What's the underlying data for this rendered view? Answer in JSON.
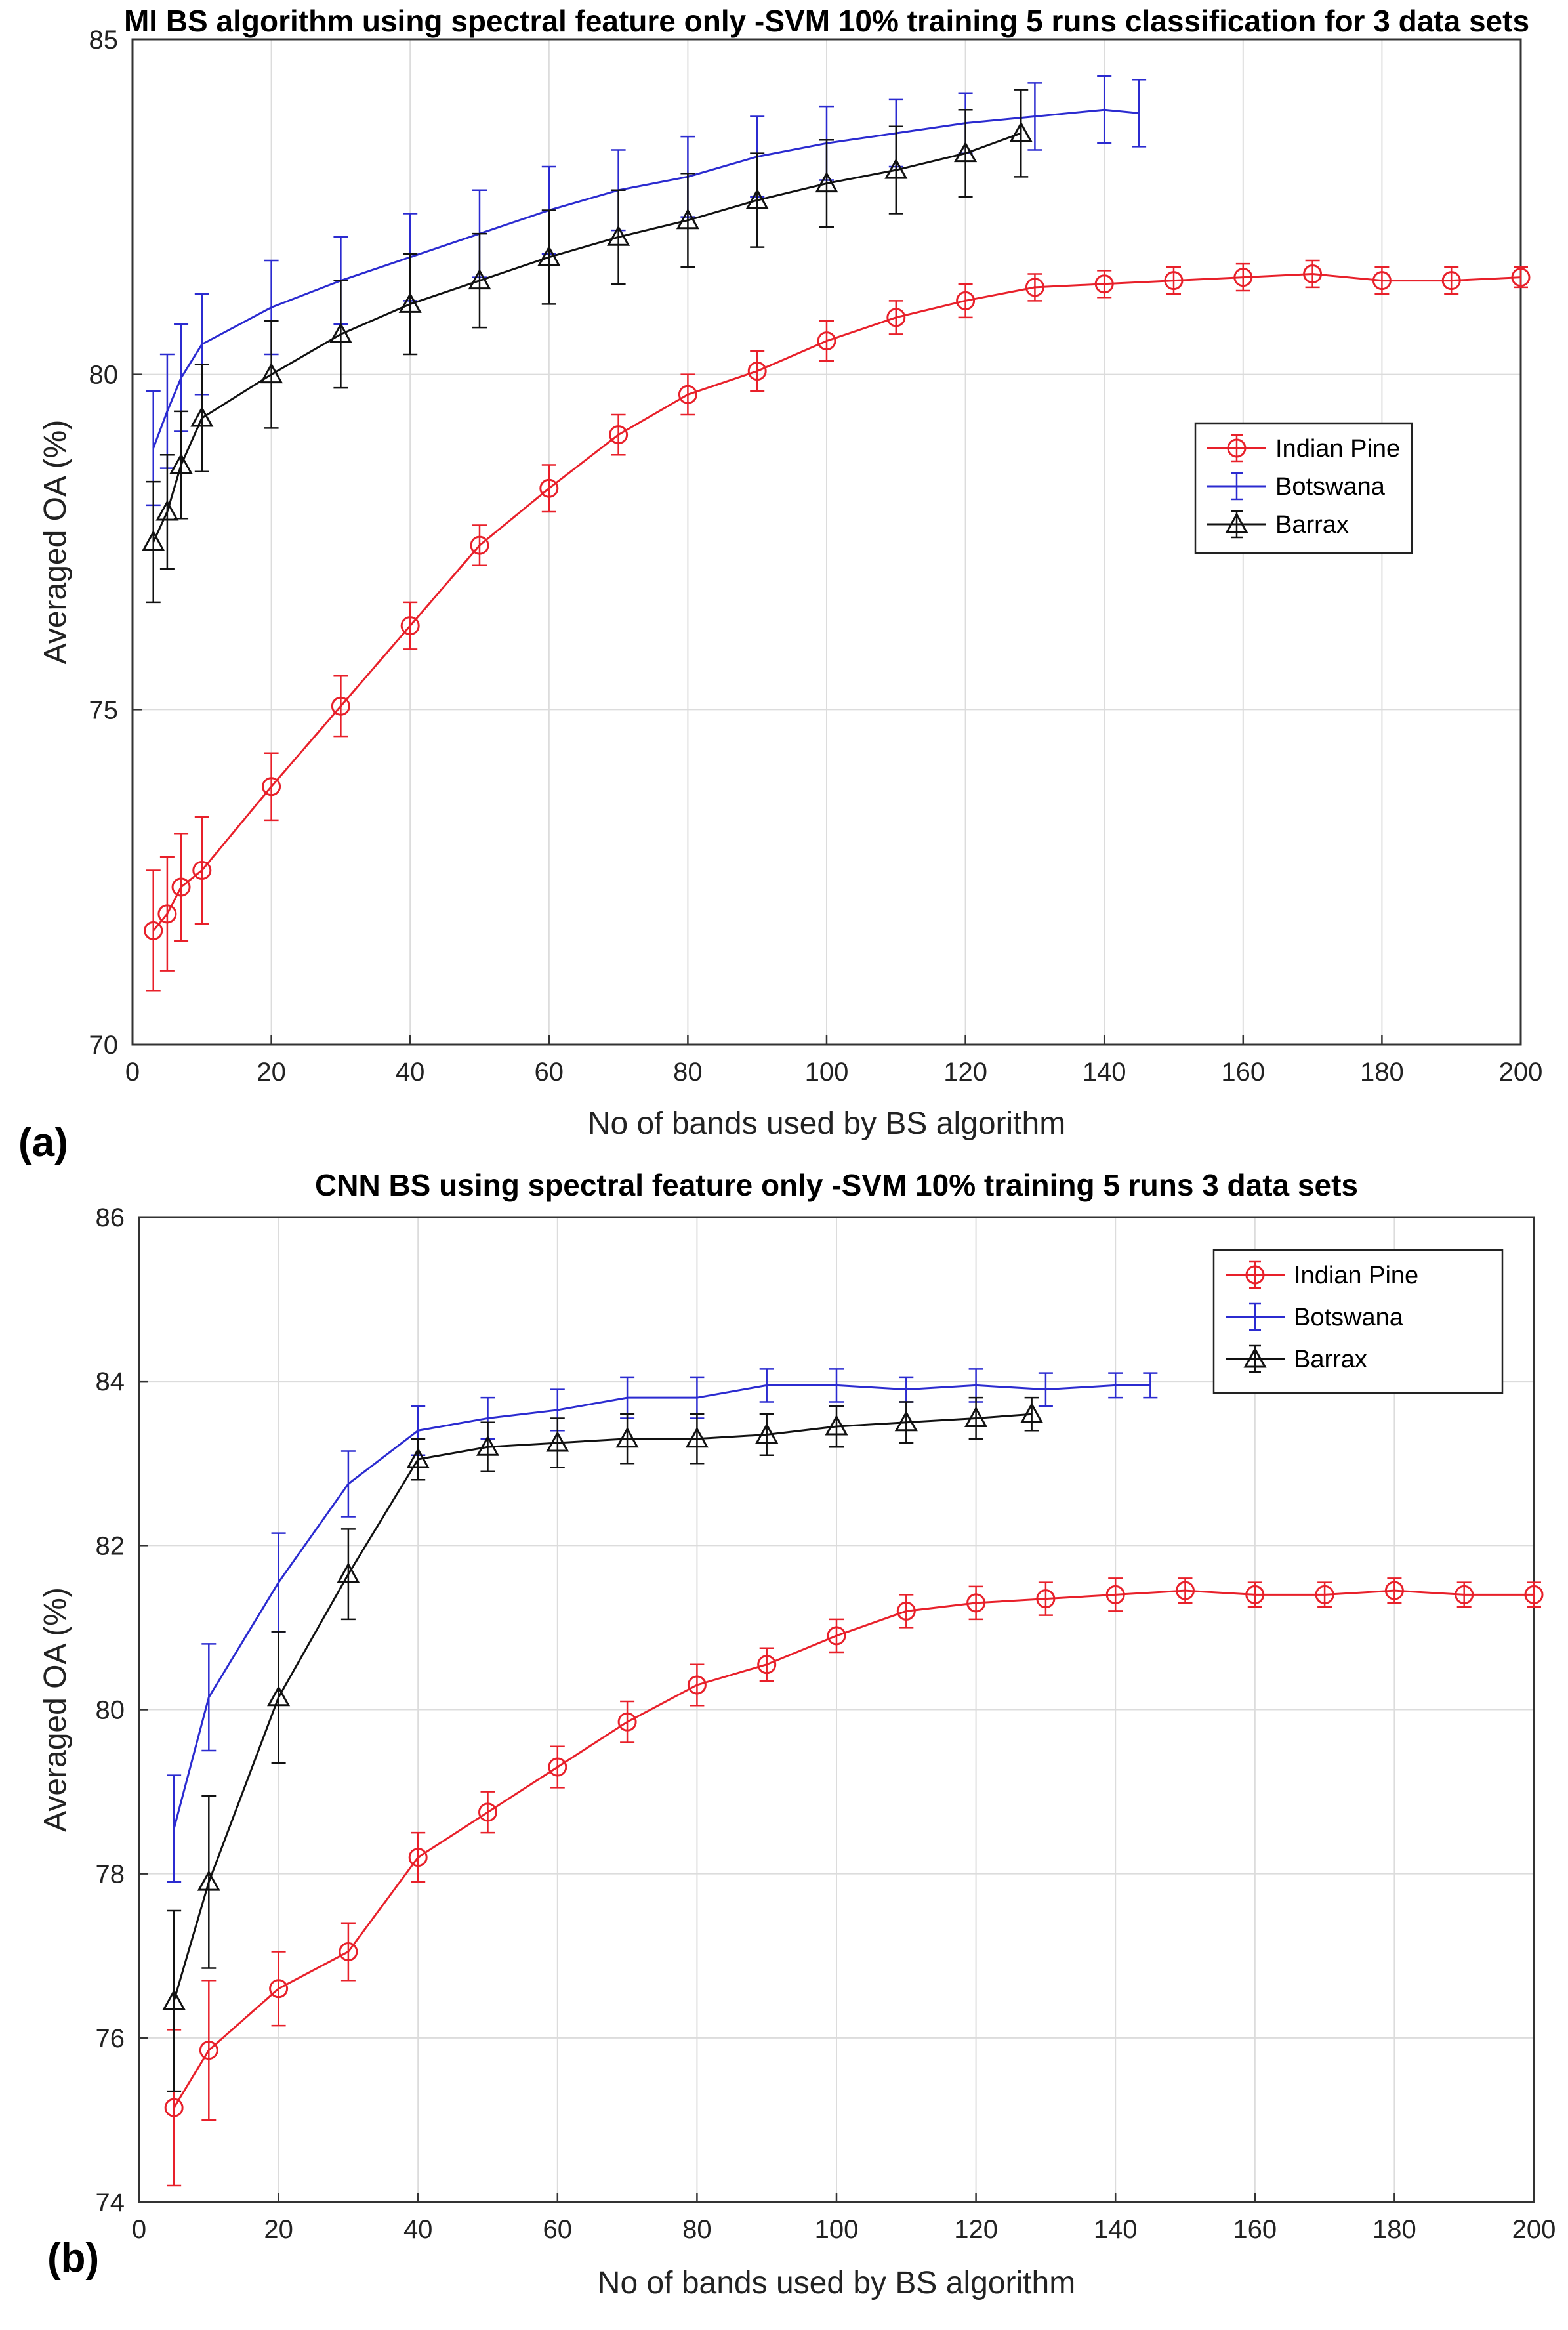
{
  "chart_data": [
    {
      "panel_label": "(a)",
      "type": "line",
      "title": "MI BS algorithm using spectral feature only -SVM 10% training 5 runs classification for 3 data sets",
      "xlabel": "No of bands used by BS algorithm",
      "ylabel": "Averaged OA (%)",
      "xlim": [
        0,
        200
      ],
      "ylim": [
        70,
        85
      ],
      "xticks": [
        0,
        20,
        40,
        60,
        80,
        100,
        120,
        140,
        160,
        180,
        200
      ],
      "yticks": [
        70,
        75,
        80,
        85
      ],
      "grid": true,
      "legend_position": "right",
      "series": [
        {
          "name": "Indian Pine",
          "color": "#e8202a",
          "marker": "circle",
          "x": [
            3,
            5,
            7,
            10,
            20,
            30,
            40,
            50,
            60,
            70,
            80,
            90,
            100,
            110,
            120,
            130,
            140,
            150,
            160,
            170,
            180,
            190,
            200
          ],
          "y": [
            71.7,
            71.95,
            72.35,
            72.6,
            73.85,
            75.05,
            76.25,
            77.45,
            78.3,
            79.1,
            79.7,
            80.05,
            80.5,
            80.85,
            81.1,
            81.3,
            81.35,
            81.4,
            81.45,
            81.5,
            81.4,
            81.4,
            81.45
          ],
          "err": [
            0.9,
            0.85,
            0.8,
            0.8,
            0.5,
            0.45,
            0.35,
            0.3,
            0.35,
            0.3,
            0.3,
            0.3,
            0.3,
            0.25,
            0.25,
            0.2,
            0.2,
            0.2,
            0.2,
            0.2,
            0.2,
            0.2,
            0.15
          ]
        },
        {
          "name": "Botswana",
          "color": "#2b2bd0",
          "marker": "none",
          "x": [
            3,
            5,
            7,
            10,
            20,
            30,
            40,
            50,
            60,
            70,
            80,
            90,
            100,
            110,
            120,
            130,
            140,
            145
          ],
          "y": [
            78.9,
            79.45,
            79.95,
            80.45,
            81.0,
            81.4,
            81.75,
            82.1,
            82.45,
            82.75,
            82.95,
            83.25,
            83.45,
            83.6,
            83.75,
            83.85,
            83.95,
            83.9
          ],
          "err": [
            0.85,
            0.85,
            0.8,
            0.75,
            0.7,
            0.65,
            0.65,
            0.65,
            0.65,
            0.6,
            0.6,
            0.6,
            0.55,
            0.5,
            0.45,
            0.5,
            0.5,
            0.5
          ]
        },
        {
          "name": "Barrax",
          "color": "#111111",
          "marker": "triangle",
          "x": [
            3,
            5,
            7,
            10,
            20,
            30,
            40,
            50,
            60,
            70,
            80,
            90,
            100,
            110,
            120,
            128
          ],
          "y": [
            77.5,
            77.95,
            78.65,
            79.35,
            80.0,
            80.6,
            81.05,
            81.4,
            81.75,
            82.05,
            82.3,
            82.6,
            82.85,
            83.05,
            83.3,
            83.6
          ],
          "err": [
            0.9,
            0.85,
            0.8,
            0.8,
            0.8,
            0.8,
            0.75,
            0.7,
            0.7,
            0.7,
            0.7,
            0.7,
            0.65,
            0.65,
            0.65,
            0.65
          ]
        }
      ]
    },
    {
      "panel_label": "(b)",
      "type": "line",
      "title": "CNN BS using spectral feature only -SVM 10% training 5 runs 3 data sets",
      "xlabel": "No of bands used by BS algorithm",
      "ylabel": "Averaged OA (%)",
      "xlim": [
        0,
        200
      ],
      "ylim": [
        74,
        86
      ],
      "xticks": [
        0,
        20,
        40,
        60,
        80,
        100,
        120,
        140,
        160,
        180,
        200
      ],
      "yticks": [
        74,
        76,
        78,
        80,
        82,
        84,
        86
      ],
      "grid": true,
      "legend_position": "top-right",
      "series": [
        {
          "name": "Indian Pine",
          "color": "#e8202a",
          "marker": "circle",
          "x": [
            5,
            10,
            20,
            30,
            40,
            50,
            60,
            70,
            80,
            90,
            100,
            110,
            120,
            130,
            140,
            150,
            160,
            170,
            180,
            190,
            200
          ],
          "y": [
            75.15,
            75.85,
            76.6,
            77.05,
            78.2,
            78.75,
            79.3,
            79.85,
            80.3,
            80.55,
            80.9,
            81.2,
            81.3,
            81.35,
            81.4,
            81.45,
            81.4,
            81.4,
            81.45,
            81.4,
            81.4
          ],
          "err": [
            0.95,
            0.85,
            0.45,
            0.35,
            0.3,
            0.25,
            0.25,
            0.25,
            0.25,
            0.2,
            0.2,
            0.2,
            0.2,
            0.2,
            0.2,
            0.15,
            0.15,
            0.15,
            0.15,
            0.15,
            0.15
          ]
        },
        {
          "name": "Botswana",
          "color": "#2b2bd0",
          "marker": "none",
          "x": [
            5,
            10,
            20,
            30,
            40,
            50,
            60,
            70,
            80,
            90,
            100,
            110,
            120,
            130,
            140,
            145
          ],
          "y": [
            78.55,
            80.15,
            81.55,
            82.75,
            83.4,
            83.55,
            83.65,
            83.8,
            83.8,
            83.95,
            83.95,
            83.9,
            83.95,
            83.9,
            83.95,
            83.95
          ],
          "err": [
            0.65,
            0.65,
            0.6,
            0.4,
            0.3,
            0.25,
            0.25,
            0.25,
            0.25,
            0.2,
            0.2,
            0.15,
            0.2,
            0.2,
            0.15,
            0.15
          ]
        },
        {
          "name": "Barrax",
          "color": "#111111",
          "marker": "triangle",
          "x": [
            5,
            10,
            20,
            30,
            40,
            50,
            60,
            70,
            80,
            90,
            100,
            110,
            120,
            128
          ],
          "y": [
            76.45,
            77.9,
            80.15,
            81.65,
            83.05,
            83.2,
            83.25,
            83.3,
            83.3,
            83.35,
            83.45,
            83.5,
            83.55,
            83.6
          ],
          "err": [
            1.1,
            1.05,
            0.8,
            0.55,
            0.25,
            0.3,
            0.3,
            0.3,
            0.3,
            0.25,
            0.25,
            0.25,
            0.25,
            0.2
          ]
        }
      ]
    }
  ]
}
